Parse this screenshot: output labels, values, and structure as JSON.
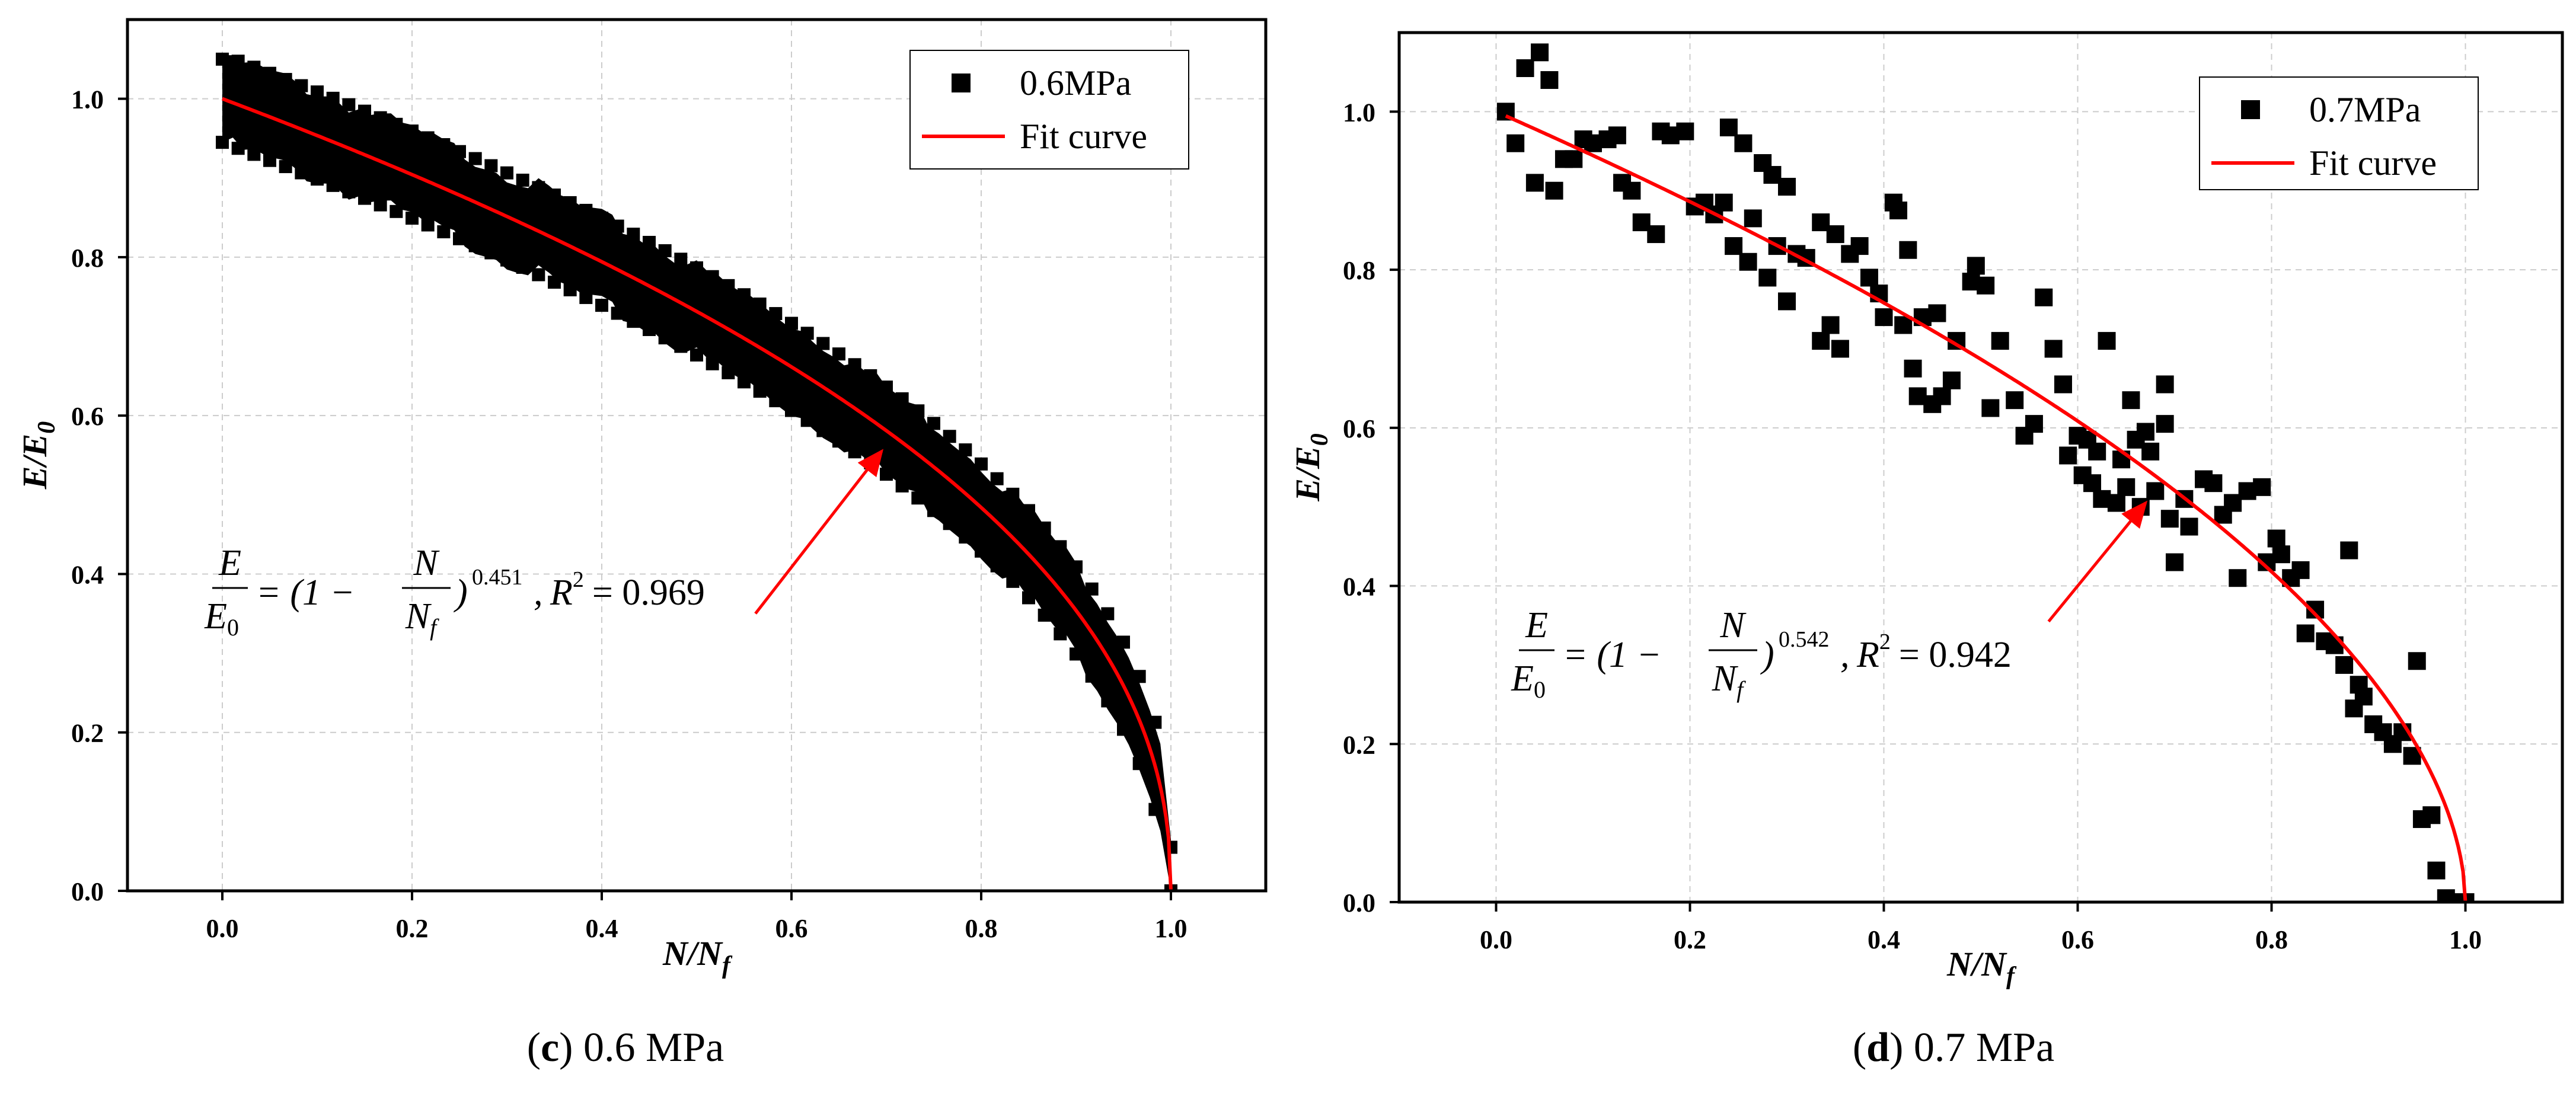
{
  "chart_data": [
    {
      "type": "scatter",
      "panel_caption": {
        "letter": "c",
        "text": "0.6 MPa"
      },
      "xlabel": {
        "main": "N/N",
        "sub": "f"
      },
      "ylabel": {
        "main": "E/E",
        "sub": "0"
      },
      "xlim": [
        -0.1,
        1.1
      ],
      "ylim": [
        0,
        1.1
      ],
      "xticks": [
        "0.0",
        "0.2",
        "0.4",
        "0.6",
        "0.8",
        "1.0"
      ],
      "yticks": [
        "0.0",
        "0.2",
        "0.4",
        "0.6",
        "0.8",
        "1.0"
      ],
      "grid": true,
      "legend_position": "top-right",
      "series": [
        {
          "name": "0.6MPa",
          "kind": "scatter-band",
          "color": "#000000",
          "half_width": 0.055
        },
        {
          "name": "Fit curve",
          "kind": "fit",
          "color": "#ff0000",
          "exponent": 0.451
        }
      ],
      "equation": {
        "lhs_num": "E",
        "lhs_den": "E",
        "lhs_den_sub": "0",
        "mid": "= (1 − ",
        "frac_num": "N",
        "frac_den": "N",
        "frac_den_sub": "f",
        "close": ")",
        "exponent": "0.451",
        "comma": ",",
        "r": "R",
        "r_sup": "2",
        "r_value": "= 0.969"
      },
      "arrow": {
        "from": [
          0.562,
          0.35
        ],
        "to": [
          0.695,
          0.555
        ]
      }
    },
    {
      "type": "scatter",
      "panel_caption": {
        "letter": "d",
        "text": "0.7 MPa"
      },
      "xlabel": {
        "main": "N/N",
        "sub": "f"
      },
      "ylabel": {
        "main": "E/E",
        "sub": "0"
      },
      "xlim": [
        -0.1,
        1.1
      ],
      "ylim": [
        0,
        1.1
      ],
      "xticks": [
        "0.0",
        "0.2",
        "0.4",
        "0.6",
        "0.8",
        "1.0"
      ],
      "yticks": [
        "0.0",
        "0.2",
        "0.4",
        "0.6",
        "0.8",
        "1.0"
      ],
      "grid": true,
      "legend_position": "top-right",
      "series": [
        {
          "name": "0.7MPa",
          "kind": "scatter",
          "color": "#000000",
          "points": [
            [
              0.01,
              1.0
            ],
            [
              0.02,
              0.96
            ],
            [
              0.03,
              1.055
            ],
            [
              0.04,
              0.91
            ],
            [
              0.045,
              1.075
            ],
            [
              0.055,
              1.04
            ],
            [
              0.06,
              0.9
            ],
            [
              0.07,
              0.94
            ],
            [
              0.08,
              0.94
            ],
            [
              0.09,
              0.965
            ],
            [
              0.1,
              0.96
            ],
            [
              0.115,
              0.965
            ],
            [
              0.125,
              0.97
            ],
            [
              0.13,
              0.91
            ],
            [
              0.14,
              0.9
            ],
            [
              0.15,
              0.86
            ],
            [
              0.165,
              0.845
            ],
            [
              0.17,
              0.975
            ],
            [
              0.18,
              0.97
            ],
            [
              0.195,
              0.975
            ],
            [
              0.205,
              0.88
            ],
            [
              0.215,
              0.885
            ],
            [
              0.225,
              0.87
            ],
            [
              0.235,
              0.885
            ],
            [
              0.24,
              0.98
            ],
            [
              0.245,
              0.83
            ],
            [
              0.255,
              0.96
            ],
            [
              0.26,
              0.81
            ],
            [
              0.265,
              0.865
            ],
            [
              0.275,
              0.935
            ],
            [
              0.28,
              0.79
            ],
            [
              0.285,
              0.92
            ],
            [
              0.29,
              0.83
            ],
            [
              0.3,
              0.905
            ],
            [
              0.3,
              0.76
            ],
            [
              0.31,
              0.82
            ],
            [
              0.32,
              0.815
            ],
            [
              0.335,
              0.86
            ],
            [
              0.335,
              0.71
            ],
            [
              0.345,
              0.73
            ],
            [
              0.35,
              0.845
            ],
            [
              0.355,
              0.7
            ],
            [
              0.365,
              0.82
            ],
            [
              0.375,
              0.83
            ],
            [
              0.385,
              0.79
            ],
            [
              0.395,
              0.77
            ],
            [
              0.4,
              0.74
            ],
            [
              0.41,
              0.885
            ],
            [
              0.415,
              0.875
            ],
            [
              0.42,
              0.73
            ],
            [
              0.425,
              0.825
            ],
            [
              0.43,
              0.675
            ],
            [
              0.435,
              0.64
            ],
            [
              0.44,
              0.74
            ],
            [
              0.45,
              0.63
            ],
            [
              0.455,
              0.745
            ],
            [
              0.46,
              0.64
            ],
            [
              0.47,
              0.66
            ],
            [
              0.475,
              0.71
            ],
            [
              0.49,
              0.785
            ],
            [
              0.495,
              0.805
            ],
            [
              0.505,
              0.78
            ],
            [
              0.51,
              0.625
            ],
            [
              0.52,
              0.71
            ],
            [
              0.535,
              0.635
            ],
            [
              0.545,
              0.59
            ],
            [
              0.555,
              0.605
            ],
            [
              0.565,
              0.765
            ],
            [
              0.575,
              0.7
            ],
            [
              0.585,
              0.655
            ],
            [
              0.59,
              0.565
            ],
            [
              0.6,
              0.59
            ],
            [
              0.605,
              0.54
            ],
            [
              0.61,
              0.585
            ],
            [
              0.615,
              0.53
            ],
            [
              0.62,
              0.57
            ],
            [
              0.625,
              0.51
            ],
            [
              0.63,
              0.71
            ],
            [
              0.64,
              0.505
            ],
            [
              0.645,
              0.56
            ],
            [
              0.65,
              0.525
            ],
            [
              0.655,
              0.635
            ],
            [
              0.66,
              0.585
            ],
            [
              0.665,
              0.5
            ],
            [
              0.67,
              0.595
            ],
            [
              0.675,
              0.57
            ],
            [
              0.68,
              0.52
            ],
            [
              0.69,
              0.655
            ],
            [
              0.69,
              0.605
            ],
            [
              0.695,
              0.485
            ],
            [
              0.7,
              0.43
            ],
            [
              0.71,
              0.51
            ],
            [
              0.715,
              0.475
            ],
            [
              0.73,
              0.535
            ],
            [
              0.74,
              0.53
            ],
            [
              0.75,
              0.49
            ],
            [
              0.76,
              0.505
            ],
            [
              0.765,
              0.41
            ],
            [
              0.775,
              0.52
            ],
            [
              0.79,
              0.525
            ],
            [
              0.795,
              0.43
            ],
            [
              0.805,
              0.46
            ],
            [
              0.81,
              0.44
            ],
            [
              0.82,
              0.41
            ],
            [
              0.83,
              0.42
            ],
            [
              0.835,
              0.34
            ],
            [
              0.845,
              0.37
            ],
            [
              0.855,
              0.33
            ],
            [
              0.865,
              0.325
            ],
            [
              0.875,
              0.3
            ],
            [
              0.88,
              0.445
            ],
            [
              0.885,
              0.245
            ],
            [
              0.89,
              0.275
            ],
            [
              0.895,
              0.26
            ],
            [
              0.905,
              0.225
            ],
            [
              0.915,
              0.215
            ],
            [
              0.925,
              0.2
            ],
            [
              0.935,
              0.215
            ],
            [
              0.945,
              0.185
            ],
            [
              0.95,
              0.305
            ],
            [
              0.955,
              0.105
            ],
            [
              0.965,
              0.11
            ],
            [
              0.97,
              0.04
            ],
            [
              0.98,
              0.005
            ],
            [
              0.99,
              0.0
            ],
            [
              1.0,
              0.0
            ]
          ]
        },
        {
          "name": "Fit curve",
          "kind": "fit",
          "color": "#ff0000",
          "exponent": 0.542
        }
      ],
      "equation": {
        "lhs_num": "E",
        "lhs_den": "E",
        "lhs_den_sub": "0",
        "mid": "= (1 − ",
        "frac_num": "N",
        "frac_den": "N",
        "frac_den_sub": "f",
        "close": ")",
        "exponent": "0.542",
        "comma": ",",
        "r": "R",
        "r_sup": "2",
        "r_value": "= 0.942"
      },
      "arrow": {
        "from": [
          0.57,
          0.355
        ],
        "to": [
          0.67,
          0.505
        ]
      }
    }
  ]
}
